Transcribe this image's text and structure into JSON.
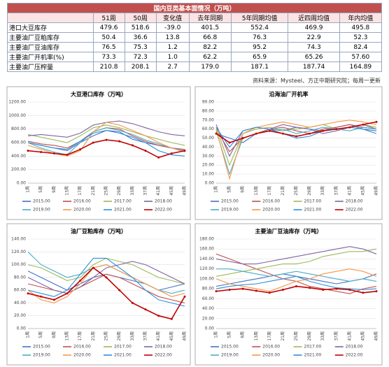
{
  "table": {
    "title": "国内豆类基本面情况（万吨）",
    "header": [
      "51周",
      "50周",
      "变化值",
      "去年同期",
      "5年同期均值",
      "近四周均值",
      "年内均值"
    ],
    "rows": [
      [
        "港口大豆库存",
        "479.6",
        "518.6",
        "-39.0",
        "401.5",
        "552.4",
        "469.9",
        "495.8"
      ],
      [
        "主要油厂豆粕库存",
        "50.4",
        "36.6",
        "13.8",
        "66.8",
        "76.3",
        "22.9",
        "52.3"
      ],
      [
        "主要油厂豆油库存",
        "76.5",
        "75.3",
        "1.2",
        "82.2",
        "95.2",
        "74.3",
        "82.4"
      ],
      [
        "主要油厂开机率(%)",
        "73.3",
        "72.3",
        "1.0",
        "62.2",
        "65.9",
        "65.26",
        "57.60"
      ],
      [
        "主要油厂压榨量",
        "210.8",
        "208.1",
        "2.7",
        "179.0",
        "187.1",
        "187.74",
        "164.89"
      ]
    ],
    "source": "资料来源：Mysteel、方正中期研究院；每周一更新"
  },
  "chart_data": [
    {
      "type": "line",
      "title": "大豆港口库存（万吨）",
      "categories": [
        "1周",
        "5周",
        "9周",
        "13周",
        "17周",
        "21周",
        "25周",
        "29周",
        "33周",
        "37周",
        "41周",
        "45周",
        "49周"
      ],
      "ylim": [
        0,
        1200
      ],
      "yticks": [
        {
          "value": 0,
          "label": "0.00"
        },
        {
          "value": 200,
          "label": "200.00"
        },
        {
          "value": 400,
          "label": "400.00"
        },
        {
          "value": 600,
          "label": "600.00"
        },
        {
          "value": 800,
          "label": "800.00"
        },
        {
          "value": 1000,
          "label": "1000.00"
        },
        {
          "value": 1200,
          "label": "1200.00"
        }
      ],
      "grid": true,
      "series": [
        {
          "name": "2015.00",
          "color": "#4472c4",
          "values": [
            600,
            560,
            520,
            480,
            600,
            700,
            780,
            760,
            650,
            600,
            560,
            520,
            480
          ]
        },
        {
          "name": "2016.00",
          "color": "#c0504d",
          "values": [
            620,
            580,
            560,
            520,
            620,
            760,
            820,
            800,
            700,
            620,
            560,
            520,
            500
          ]
        },
        {
          "name": "2017.00",
          "color": "#9bbb59",
          "values": [
            720,
            680,
            640,
            600,
            700,
            820,
            860,
            820,
            760,
            700,
            650,
            600,
            560
          ]
        },
        {
          "name": "2018.00",
          "color": "#8064a2",
          "values": [
            700,
            720,
            700,
            680,
            740,
            860,
            900,
            920,
            880,
            820,
            760,
            720,
            700
          ]
        },
        {
          "name": "2019.00",
          "color": "#4bacc6",
          "values": [
            600,
            520,
            460,
            420,
            600,
            760,
            820,
            780,
            720,
            640,
            580,
            520,
            480
          ]
        },
        {
          "name": "2020.00",
          "color": "#f79646",
          "values": [
            560,
            500,
            440,
            400,
            480,
            760,
            900,
            860,
            780,
            700,
            600,
            520,
            460
          ]
        },
        {
          "name": "2021.00",
          "color": "#2c8fd8",
          "values": [
            600,
            560,
            520,
            500,
            620,
            740,
            780,
            740,
            680,
            600,
            480,
            420,
            400
          ]
        },
        {
          "name": "2022.00",
          "color": "#c00000",
          "values": [
            480,
            460,
            440,
            420,
            500,
            600,
            640,
            620,
            560,
            480,
            380,
            440,
            480
          ]
        }
      ]
    },
    {
      "type": "line",
      "title": "沿海油厂开机率",
      "categories": [
        "1周",
        "5周",
        "9周",
        "13周",
        "17周",
        "21周",
        "25周",
        "29周",
        "33周",
        "37周",
        "41周",
        "45周",
        "49周"
      ],
      "ylim": [
        0,
        90
      ],
      "yticks": [
        {
          "value": 0,
          "label": "0.00"
        },
        {
          "value": 10,
          "label": "10.00"
        },
        {
          "value": 20,
          "label": "20.00"
        },
        {
          "value": 30,
          "label": "30.00"
        },
        {
          "value": 40,
          "label": "40.00"
        },
        {
          "value": 50,
          "label": "50.00"
        },
        {
          "value": 60,
          "label": "60.00"
        },
        {
          "value": 70,
          "label": "70.00"
        },
        {
          "value": 80,
          "label": "80.00"
        },
        {
          "value": 90,
          "label": "90.00"
        }
      ],
      "grid": true,
      "series": [
        {
          "name": "2015.00",
          "color": "#4472c4",
          "values": [
            55,
            50,
            45,
            55,
            60,
            58,
            62,
            60,
            58,
            62,
            65,
            60,
            58
          ]
        },
        {
          "name": "2016.00",
          "color": "#c0504d",
          "values": [
            60,
            35,
            50,
            55,
            60,
            62,
            58,
            55,
            60,
            62,
            65,
            62,
            60
          ]
        },
        {
          "name": "2017.00",
          "color": "#9bbb59",
          "values": [
            62,
            20,
            55,
            60,
            62,
            58,
            60,
            62,
            65,
            60,
            62,
            65,
            62
          ]
        },
        {
          "name": "2018.00",
          "color": "#8064a2",
          "values": [
            65,
            30,
            58,
            62,
            60,
            65,
            62,
            60,
            55,
            58,
            62,
            65,
            60
          ]
        },
        {
          "name": "2019.00",
          "color": "#4bacc6",
          "values": [
            58,
            10,
            50,
            55,
            58,
            60,
            55,
            58,
            62,
            60,
            58,
            62,
            60
          ]
        },
        {
          "name": "2020.00",
          "color": "#f79646",
          "values": [
            60,
            5,
            55,
            62,
            65,
            68,
            65,
            62,
            65,
            68,
            70,
            68,
            65
          ]
        },
        {
          "name": "2021.00",
          "color": "#2c8fd8",
          "values": [
            62,
            40,
            58,
            62,
            60,
            55,
            50,
            52,
            58,
            60,
            62,
            60,
            55
          ]
        },
        {
          "name": "2022.00",
          "color": "#c00000",
          "values": [
            55,
            45,
            50,
            55,
            58,
            55,
            52,
            55,
            58,
            60,
            62,
            65,
            68
          ]
        }
      ]
    },
    {
      "type": "line",
      "title": "油厂豆粕库存（万吨）",
      "categories": [
        "1周",
        "5周",
        "9周",
        "13周",
        "17周",
        "21周",
        "25周",
        "29周",
        "33周",
        "37周",
        "41周",
        "45周",
        "49周"
      ],
      "ylim": [
        0,
        140
      ],
      "yticks": [
        {
          "value": 0,
          "label": "0.00"
        },
        {
          "value": 20,
          "label": "20.00"
        },
        {
          "value": 40,
          "label": "40.00"
        },
        {
          "value": 60,
          "label": "60.00"
        },
        {
          "value": 80,
          "label": "80.00"
        },
        {
          "value": 100,
          "label": "100.00"
        },
        {
          "value": 120,
          "label": "120.00"
        },
        {
          "value": 140,
          "label": "140.00"
        }
      ],
      "grid": true,
      "series": [
        {
          "name": "2015.00",
          "color": "#4472c4",
          "values": [
            90,
            80,
            70,
            60,
            70,
            80,
            85,
            80,
            75,
            70,
            60,
            65,
            70
          ]
        },
        {
          "name": "2016.00",
          "color": "#c0504d",
          "values": [
            70,
            65,
            60,
            55,
            65,
            75,
            85,
            80,
            70,
            60,
            50,
            45,
            40
          ]
        },
        {
          "name": "2017.00",
          "color": "#9bbb59",
          "values": [
            100,
            95,
            85,
            75,
            80,
            100,
            110,
            105,
            100,
            90,
            80,
            75,
            70
          ]
        },
        {
          "name": "2018.00",
          "color": "#8064a2",
          "values": [
            80,
            70,
            60,
            55,
            65,
            80,
            95,
            100,
            105,
            100,
            90,
            80,
            70
          ]
        },
        {
          "name": "2019.00",
          "color": "#4bacc6",
          "values": [
            120,
            100,
            90,
            80,
            85,
            95,
            100,
            90,
            80,
            70,
            60,
            55,
            60
          ]
        },
        {
          "name": "2020.00",
          "color": "#f79646",
          "values": [
            60,
            45,
            40,
            50,
            70,
            95,
            100,
            90,
            80,
            70,
            60,
            50,
            55
          ]
        },
        {
          "name": "2021.00",
          "color": "#2c8fd8",
          "values": [
            60,
            55,
            50,
            60,
            85,
            110,
            110,
            95,
            80,
            60,
            45,
            40,
            35
          ]
        },
        {
          "name": "2022.00",
          "color": "#c00000",
          "values": [
            55,
            50,
            45,
            55,
            75,
            95,
            80,
            60,
            40,
            30,
            20,
            15,
            50
          ]
        }
      ]
    },
    {
      "type": "line",
      "title": "主要油厂豆油库存（万吨）",
      "categories": [
        "1周",
        "5周",
        "9周",
        "13周",
        "17周",
        "21周",
        "25周",
        "29周",
        "33周",
        "37周",
        "41周",
        "45周",
        "49周"
      ],
      "ylim": [
        0,
        180
      ],
      "yticks": [
        {
          "value": 0,
          "label": "0.00"
        },
        {
          "value": 20,
          "label": "20.00"
        },
        {
          "value": 40,
          "label": "40.00"
        },
        {
          "value": 60,
          "label": "60.00"
        },
        {
          "value": 80,
          "label": "80.00"
        },
        {
          "value": 100,
          "label": "100.00"
        },
        {
          "value": 120,
          "label": "120.00"
        },
        {
          "value": 140,
          "label": "140.00"
        },
        {
          "value": 160,
          "label": "160.00"
        },
        {
          "value": 180,
          "label": "180.00"
        }
      ],
      "grid": true,
      "series": [
        {
          "name": "2015.00",
          "color": "#4472c4",
          "values": [
            85,
            90,
            95,
            100,
            105,
            110,
            105,
            100,
            95,
            90,
            95,
            100,
            110
          ]
        },
        {
          "name": "2016.00",
          "color": "#c0504d",
          "values": [
            150,
            140,
            130,
            120,
            110,
            100,
            95,
            85,
            80,
            75,
            70,
            80,
            85
          ]
        },
        {
          "name": "2017.00",
          "color": "#9bbb59",
          "values": [
            105,
            110,
            115,
            120,
            125,
            130,
            130,
            135,
            145,
            150,
            155,
            155,
            160
          ]
        },
        {
          "name": "2018.00",
          "color": "#8064a2",
          "values": [
            140,
            135,
            130,
            130,
            135,
            140,
            145,
            150,
            155,
            160,
            165,
            160,
            150
          ]
        },
        {
          "name": "2019.00",
          "color": "#4bacc6",
          "values": [
            120,
            120,
            115,
            110,
            105,
            110,
            115,
            110,
            105,
            100,
            95,
            100,
            95
          ]
        },
        {
          "name": "2020.00",
          "color": "#f79646",
          "values": [
            100,
            90,
            85,
            80,
            75,
            85,
            95,
            100,
            110,
            115,
            120,
            115,
            105
          ]
        },
        {
          "name": "2021.00",
          "color": "#2c8fd8",
          "values": [
            80,
            85,
            88,
            90,
            95,
            100,
            105,
            95,
            88,
            82,
            80,
            78,
            80
          ]
        },
        {
          "name": "2022.00",
          "color": "#c00000",
          "values": [
            75,
            78,
            80,
            76,
            72,
            78,
            85,
            82,
            78,
            80,
            78,
            72,
            75
          ]
        }
      ]
    }
  ]
}
